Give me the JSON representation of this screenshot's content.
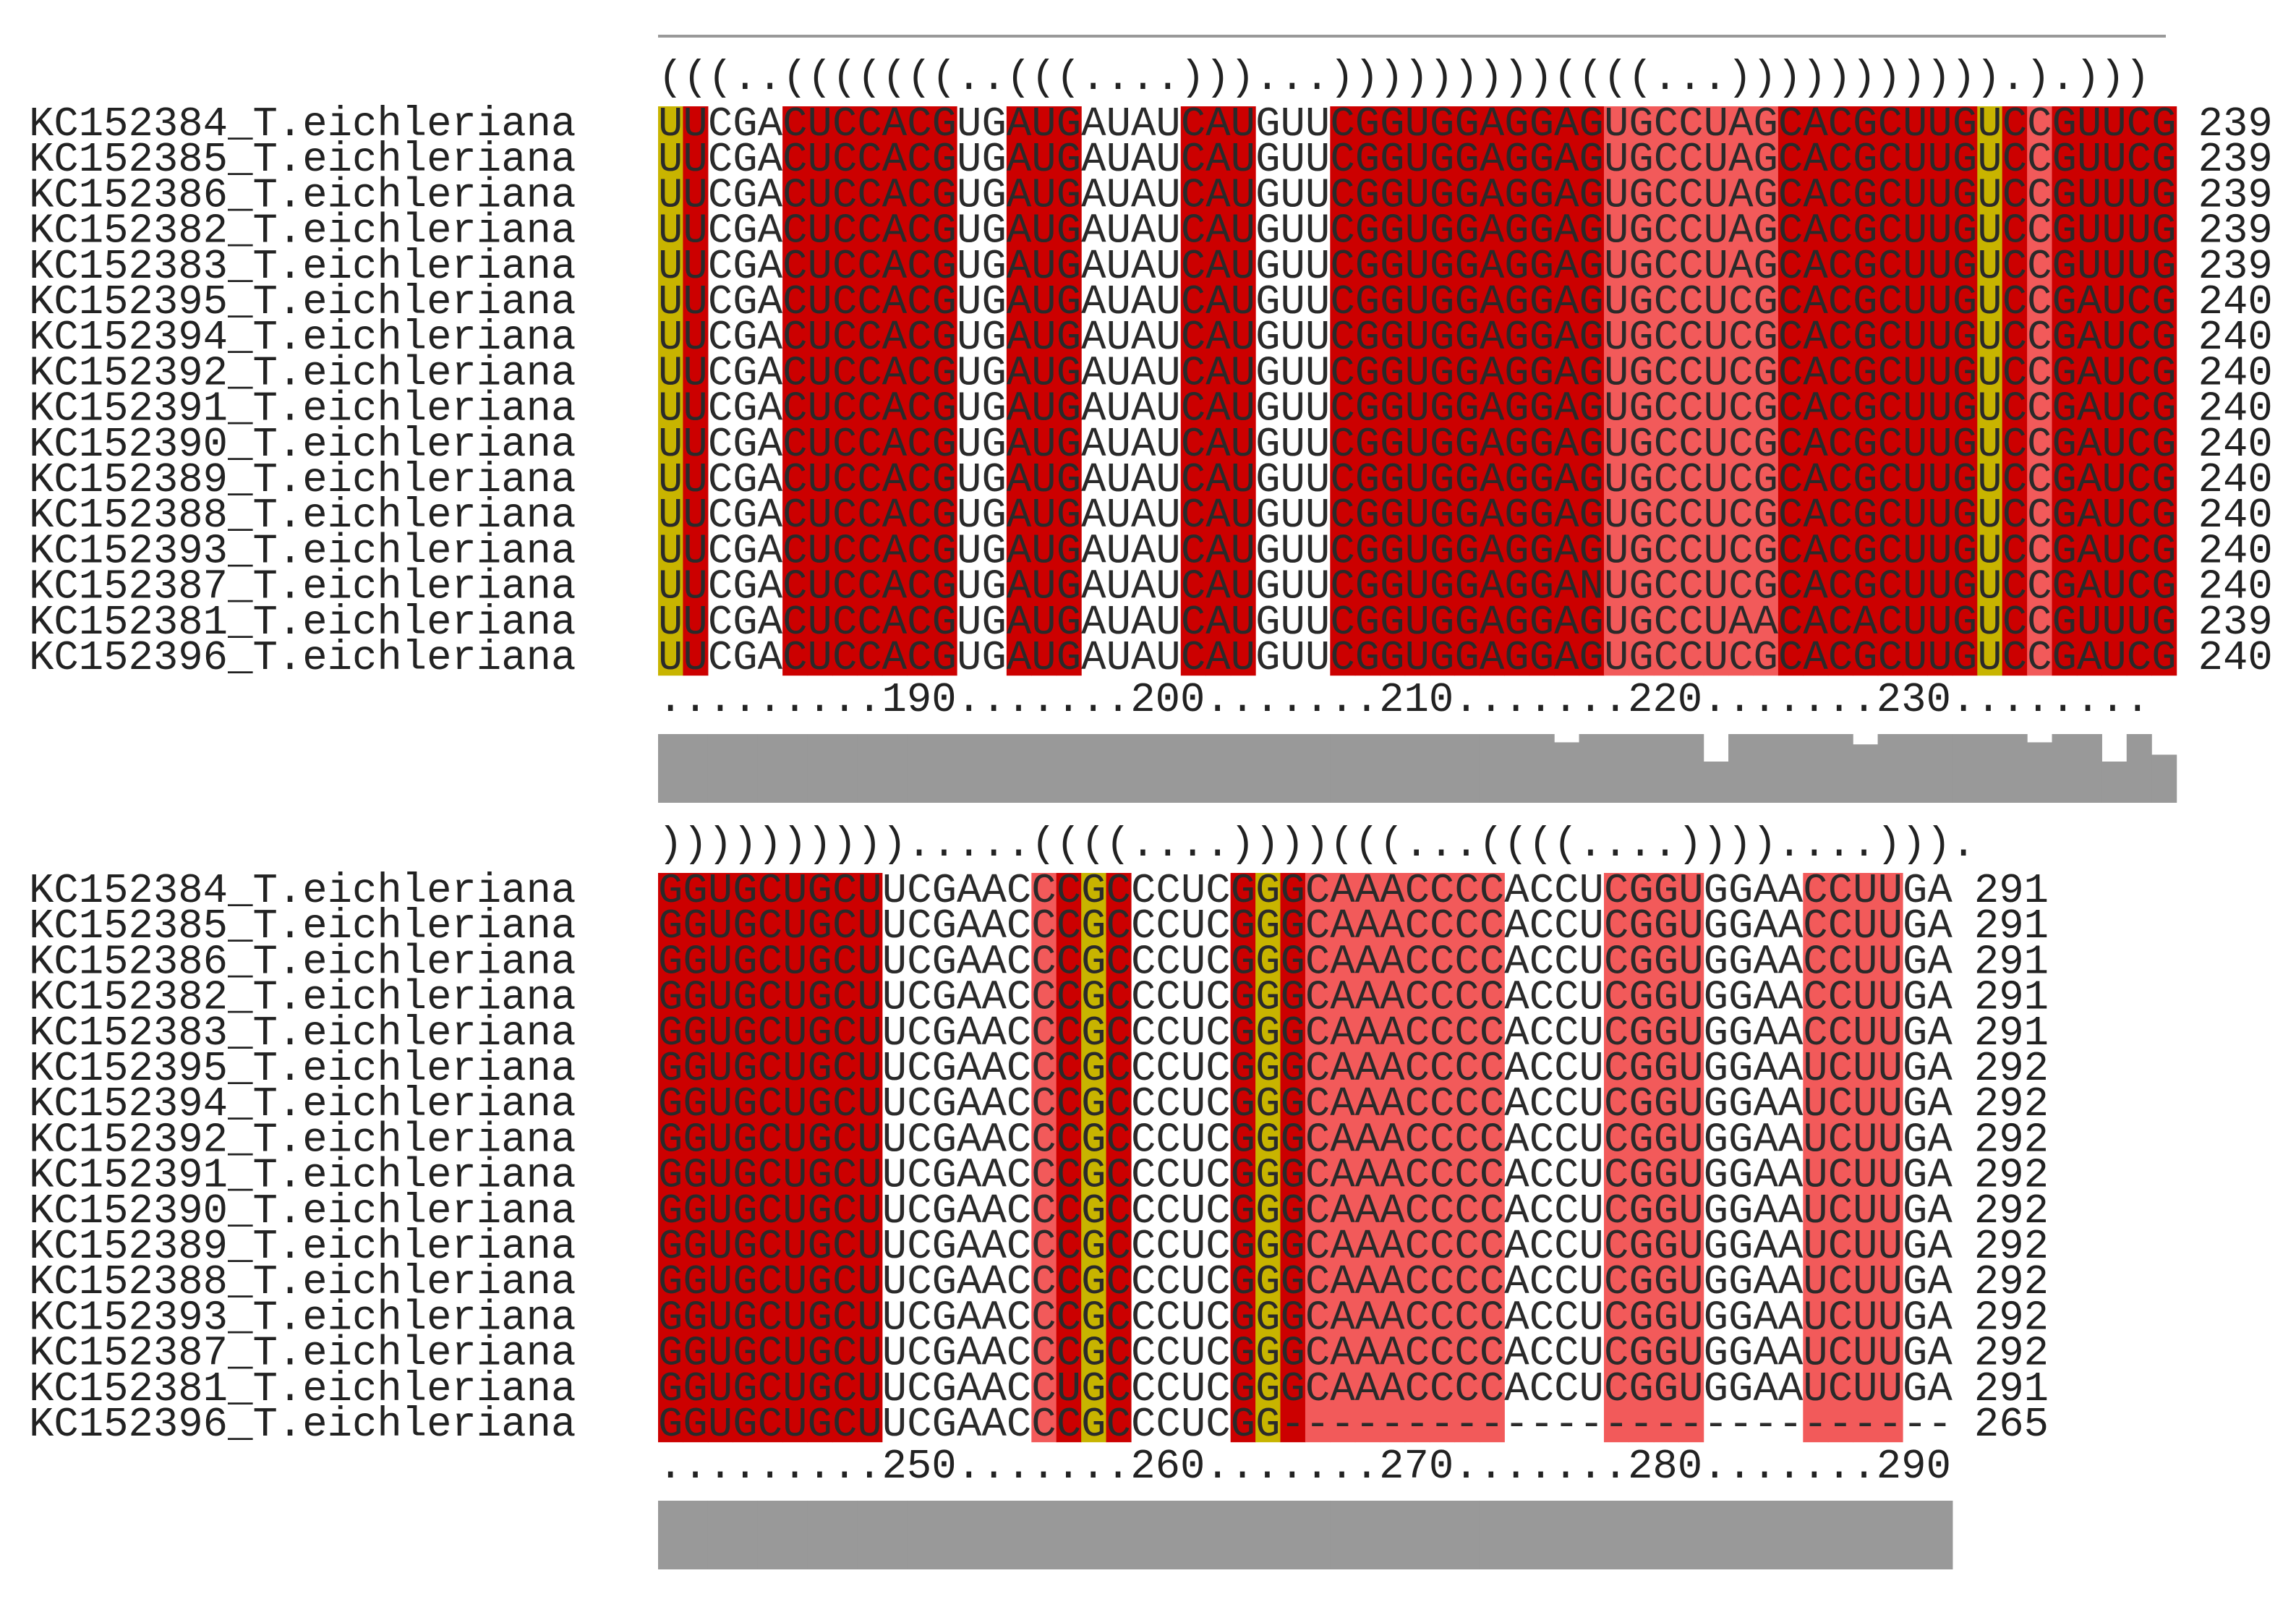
{
  "blocks": [
    {
      "structure": "(((..(((((((..(((....)))...)))))))))((((...))))))))))).).)))",
      "ruler": ".........190.......200.......210.......220.......230........",
      "rows": [
        {
          "name": "KC152384_T.eichleriana",
          "seq": "UUCGACUCCACGUGAUGAUAUCAUGUUCGGUGGAGGAGUGCCUAGCACGCUUGUCCGUUCG",
          "count": "239"
        },
        {
          "name": "KC152385_T.eichleriana",
          "seq": "UUCGACUCCACGUGAUGAUAUCAUGUUCGGUGGAGGAGUGCCUAGCACGCUUGUCCGUUCG",
          "count": "239"
        },
        {
          "name": "KC152386_T.eichleriana",
          "seq": "UUCGACUCCACGUGAUGAUAUCAUGUUCGGUGGAGGAGUGCCUAGCACGCUUGUCCGUUUG",
          "count": "239"
        },
        {
          "name": "KC152382_T.eichleriana",
          "seq": "UUCGACUCCACGUGAUGAUAUCAUGUUCGGUGGAGGAGUGCCUAGCACGCUUGUCCGUUUG",
          "count": "239"
        },
        {
          "name": "KC152383_T.eichleriana",
          "seq": "UUCGACUCCACGUGAUGAUAUCAUGUUCGGUGGAGGAGUGCCUAGCACGCUUGUCCGUUUG",
          "count": "239"
        },
        {
          "name": "KC152395_T.eichleriana",
          "seq": "UUCGACUCCACGUGAUGAUAUCAUGUUCGGUGGAGGAGUGCCUCGCACGCUUGUCCGAUCG",
          "count": "240"
        },
        {
          "name": "KC152394_T.eichleriana",
          "seq": "UUCGACUCCACGUGAUGAUAUCAUGUUCGGUGGAGGAGUGCCUCGCACGCUUGUCCGAUCG",
          "count": "240"
        },
        {
          "name": "KC152392_T.eichleriana",
          "seq": "UUCGACUCCACGUGAUGAUAUCAUGUUCGGUGGAGGAGUGCCUCGCACGCUUGUCCGAUCG",
          "count": "240"
        },
        {
          "name": "KC152391_T.eichleriana",
          "seq": "UUCGACUCCACGUGAUGAUAUCAUGUUCGGUGGAGGAGUGCCUCGCACGCUUGUCCGAUCG",
          "count": "240"
        },
        {
          "name": "KC152390_T.eichleriana",
          "seq": "UUCGACUCCACGUGAUGAUAUCAUGUUCGGUGGAGGAGUGCCUCGCACGCUUGUCCGAUCG",
          "count": "240"
        },
        {
          "name": "KC152389_T.eichleriana",
          "seq": "UUCGACUCCACGUGAUGAUAUCAUGUUCGGUGGAGGAGUGCCUCGCACGCUUGUCCGAUCG",
          "count": "240"
        },
        {
          "name": "KC152388_T.eichleriana",
          "seq": "UUCGACUCCACGUGAUGAUAUCAUGUUCGGUGGAGGAGUGCCUCGCACGCUUGUCCGAUCG",
          "count": "240"
        },
        {
          "name": "KC152393_T.eichleriana",
          "seq": "UUCGACUCCACGUGAUGAUAUCAUGUUCGGUGGAGGAGUGCCUCGCACGCUUGUCCGAUCG",
          "count": "240"
        },
        {
          "name": "KC152387_T.eichleriana",
          "seq": "UUCGACUCCACGUGAUGAUAUCAUGUUCGGUGGAGGANUGCCUCGCACGCUUGUCCGAUCG",
          "count": "240"
        },
        {
          "name": "KC152381_T.eichleriana",
          "seq": "UUCGACUCCACGUGAUGAUAUCAUGUUCGGUGGAGGAGUGCCUAACACACUUGUCCGUUUG",
          "count": "239"
        },
        {
          "name": "KC152396_T.eichleriana",
          "seq": "UUCGACUCCACGUGAUGAUAUCAUGUUCGGUGGAGGAGUGCCUCGCACGCUUGUCCGAUCG",
          "count": "240"
        }
      ],
      "columnColors": "YDWWWDDDDDDDWWDDDWWWWDDDWWWDDDDDDDDDDDXXXXXXXDDDDDDDDYDLDDDDD",
      "conservation": [
        1,
        1,
        1,
        1,
        1,
        1,
        1,
        1,
        1,
        1,
        1,
        1,
        1,
        1,
        1,
        1,
        1,
        1,
        1,
        1,
        1,
        1,
        1,
        1,
        1,
        1,
        1,
        1,
        1,
        1,
        1,
        1,
        1,
        1,
        1,
        1,
        0.88,
        1,
        1,
        1,
        1,
        1,
        0.6,
        1,
        1,
        1,
        1,
        1,
        0.85,
        1,
        1,
        1,
        1,
        1,
        1,
        0.88,
        1,
        1,
        0.6,
        1,
        0.7
      ]
    },
    {
      "structure": ")))))))))).....((((....))))(((...((((....))))....))).",
      "ruler": ".........250.......260.......270.......280.......290",
      "rows": [
        {
          "name": "KC152384_T.eichleriana",
          "seq": "GGUGCUGCUUCGAACCCGCCCUCGGGCAAACCCCACCUCGGUGGAACCUUGA",
          "count": "291"
        },
        {
          "name": "KC152385_T.eichleriana",
          "seq": "GGUGCUGCUUCGAACCCGCCCUCGGGCAAACCCCACCUCGGUGGAACCUUGA",
          "count": "291"
        },
        {
          "name": "KC152386_T.eichleriana",
          "seq": "GGUGCUGCUUCGAACCCGCCCUCGGGCAAACCCCACCUCGGUGGAACCUUGA",
          "count": "291"
        },
        {
          "name": "KC152382_T.eichleriana",
          "seq": "GGUGCUGCUUCGAACCCGCCCUCGGGCAAACCCCACCUCGGUGGAACCUUGA",
          "count": "291"
        },
        {
          "name": "KC152383_T.eichleriana",
          "seq": "GGUGCUGCUUCGAACCCGCCCUCGGGCAAACCCCACCUCGGUGGAACCUUGA",
          "count": "291"
        },
        {
          "name": "KC152395_T.eichleriana",
          "seq": "GGUGCUGCUUCGAACCCGCCCUCGGGCAAACCCCACCUCGGUGGAAUCUUGA",
          "count": "292"
        },
        {
          "name": "KC152394_T.eichleriana",
          "seq": "GGUGCUGCUUCGAACCCGCCCUCGGGCAAACCCCACCUCGGUGGAAUCUUGA",
          "count": "292"
        },
        {
          "name": "KC152392_T.eichleriana",
          "seq": "GGUGCUGCUUCGAACCCGCCCUCGGGCAAACCCCACCUCGGUGGAAUCUUGA",
          "count": "292"
        },
        {
          "name": "KC152391_T.eichleriana",
          "seq": "GGUGCUGCUUCGAACCCGCCCUCGGGCAAACCCCACCUCGGUGGAAUCUUGA",
          "count": "292"
        },
        {
          "name": "KC152390_T.eichleriana",
          "seq": "GGUGCUGCUUCGAACCCGCCCUCGGGCAAACCCCACCUCGGUGGAAUCUUGA",
          "count": "292"
        },
        {
          "name": "KC152389_T.eichleriana",
          "seq": "GGUGCUGCUUCGAACCCGCCCUCGGGCAAACCCCACCUCGGUGGAAUCUUGA",
          "count": "292"
        },
        {
          "name": "KC152388_T.eichleriana",
          "seq": "GGUGCUGCUUCGAACCCGCCCUCGGGCAAACCCCACCUCGGUGGAAUCUUGA",
          "count": "292"
        },
        {
          "name": "KC152393_T.eichleriana",
          "seq": "GGUGCUGCUUCGAACCCGCCCUCGGGCAAACCCCACCUCGGUGGAAUCUUGA",
          "count": "292"
        },
        {
          "name": "KC152387_T.eichleriana",
          "seq": "GGUGCUGCUUCGAACCCGCCCUCGGGCAAACCCCACCUCGGUGGAAUCUUGA",
          "count": "292"
        },
        {
          "name": "KC152381_T.eichleriana",
          "seq": "GGUGCUGCUUCGAACCUGCCCUCGGGCAAACCCCACCUCGGUGGAAUCUUGA",
          "count": "291"
        },
        {
          "name": "KC152396_T.eichleriana",
          "seq": "GGUGCUGCUUCGAACCCGCCCUCGG---------------------------",
          "count": "265"
        }
      ],
      "columnColors": "DDDDDDDDDWWWWWWLDYDWWWWDYDLLLLLLLLWWWWLLLLWWWWLLLLWW",
      "conservation": [
        1,
        1,
        1,
        1,
        1,
        1,
        1,
        1,
        1,
        1,
        1,
        1,
        1,
        1,
        1,
        1,
        1,
        1,
        1,
        1,
        1,
        1,
        1,
        1,
        1,
        1,
        1,
        1,
        1,
        1,
        1,
        1,
        1,
        1,
        1,
        1,
        1,
        1,
        1,
        1,
        1,
        1,
        1,
        1,
        1,
        1,
        1,
        1,
        1,
        1,
        1,
        1
      ]
    }
  ],
  "colors": {
    "dark_red": "#cc0000",
    "light_red": "#f25a5a",
    "olive": "#c8b400",
    "conservation_gray": "#999999",
    "frame_gray": "#999999"
  }
}
